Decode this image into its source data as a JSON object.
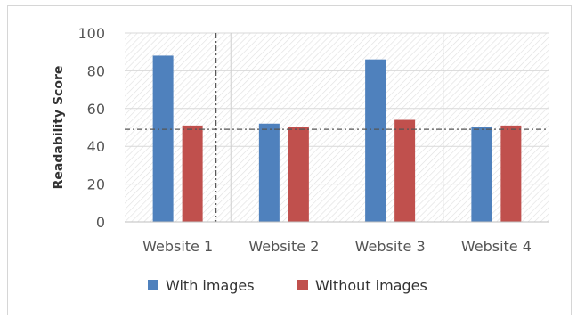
{
  "chart_data": {
    "type": "bar",
    "title": "",
    "xlabel": "",
    "ylabel": "Readability Score",
    "ylim": [
      0,
      100
    ],
    "yticks": [
      0,
      20,
      40,
      60,
      80,
      100
    ],
    "categories": [
      "Website 1",
      "Website 2",
      "Website 3",
      "Website 4"
    ],
    "series": [
      {
        "name": "With images",
        "color": "#4F81BD",
        "values": [
          88,
          52,
          86,
          50
        ]
      },
      {
        "name": "Without images",
        "color": "#C0504D",
        "values": [
          51,
          50,
          54,
          51
        ]
      }
    ],
    "reference_line": 49,
    "grid": true,
    "legend": "bottom-center"
  }
}
